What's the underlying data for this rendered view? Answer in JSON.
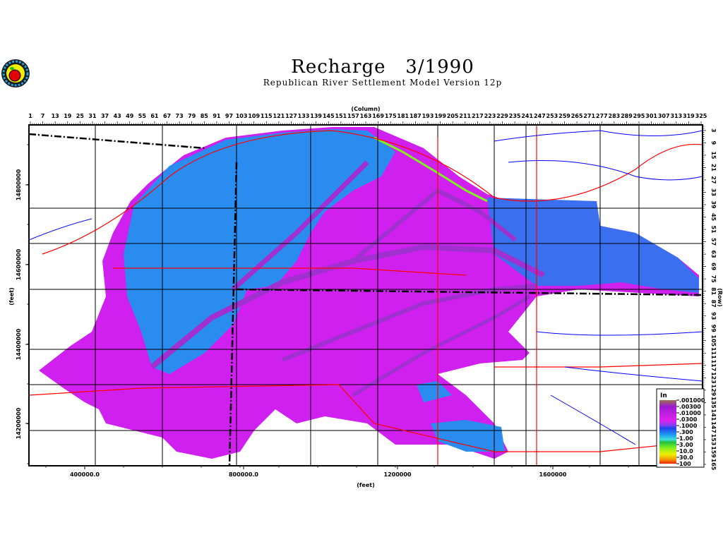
{
  "header": {
    "title": "Recharge   3/1990",
    "subtitle": "Republican River Settlement Model Version 12p",
    "logo_icon": "apple-seal-logo"
  },
  "chart_data": {
    "type": "heatmap",
    "title": "Recharge   3/1990",
    "subtitle": "Republican River Settlement Model Version 12p",
    "top_axis": {
      "label": "(Column)",
      "ticks": [
        1,
        7,
        13,
        19,
        25,
        31,
        37,
        43,
        49,
        55,
        61,
        67,
        73,
        79,
        85,
        91,
        97,
        103,
        109,
        115,
        121,
        127,
        133,
        139,
        145,
        151,
        157,
        163,
        169,
        175,
        181,
        187,
        193,
        199,
        205,
        211,
        217,
        223,
        229,
        235,
        241,
        247,
        253,
        259,
        265,
        271,
        277,
        283,
        289,
        295,
        301,
        307,
        313,
        319,
        325
      ],
      "range": [
        1,
        325
      ]
    },
    "right_axis": {
      "label": "(Row)",
      "ticks": [
        3,
        9,
        15,
        21,
        27,
        33,
        39,
        45,
        51,
        57,
        63,
        69,
        75,
        81,
        87,
        93,
        99,
        105,
        111,
        117,
        123,
        129,
        135,
        141,
        147,
        153,
        159,
        165
      ],
      "range": [
        1,
        165
      ]
    },
    "bottom_axis": {
      "label": "(feet)",
      "ticks": [
        "400000.0",
        "800000.0",
        "1200000",
        "1600000"
      ]
    },
    "left_axis": {
      "label": "(feet)",
      "ticks": [
        "14800000",
        "14600000",
        "14400000",
        "14200000"
      ]
    },
    "legend": {
      "title": "In",
      "placement": "bottom-right",
      "scale": "log",
      "labels": [
        ".001000",
        ".00300",
        ".01000",
        ".0300",
        ".1000",
        ".300",
        "1.00",
        "3.00",
        "10.0",
        "30.0",
        "100"
      ],
      "colors": [
        "#a0704c",
        "#9a1ad0",
        "#c020e0",
        "#e020f0",
        "#8040f0",
        "#2040f0",
        "#20a0f0",
        "#40e0e0",
        "#20d040",
        "#80f020",
        "#f0f000",
        "#f0a000",
        "#f02000"
      ]
    },
    "map_colors": {
      "dominant_recharge": "#d020f0",
      "streams_recharge": "#a030d0",
      "high_recharge": "#2080f0",
      "rivers": "#0000ff",
      "roads": "#ff0000",
      "boundaries": "#000000"
    }
  }
}
